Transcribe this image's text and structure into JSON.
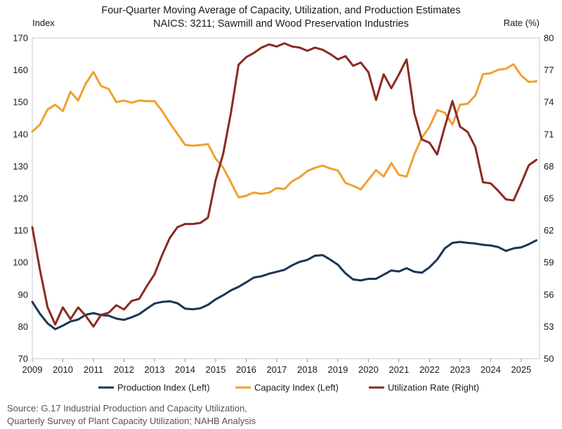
{
  "chart_data": {
    "type": "line",
    "title": "Four-Quarter Moving Average of Capacity, Utilization, and Production Estimates",
    "subtitle": "NAICS: 3211; Sawmill and Wood Preservation Industries",
    "ylabel_left": "Index",
    "ylabel_right": "Rate (%)",
    "xlim": [
      2009,
      2025.6
    ],
    "ylim_left": [
      70,
      170
    ],
    "ylim_right": [
      50,
      80
    ],
    "x_ticks": [
      "2009",
      "2010",
      "2011",
      "2012",
      "2013",
      "2014",
      "2015",
      "2016",
      "2017",
      "2018",
      "2019",
      "2020",
      "2021",
      "2022",
      "2023",
      "2024",
      "2025"
    ],
    "y_ticks_left": [
      "70",
      "80",
      "90",
      "100",
      "110",
      "120",
      "130",
      "140",
      "150",
      "160",
      "170"
    ],
    "y_ticks_right": [
      "50",
      "53",
      "56",
      "59",
      "62",
      "65",
      "68",
      "71",
      "74",
      "77",
      "80"
    ],
    "grid": false,
    "legend_position": "bottom",
    "x": [
      2009.0,
      2009.25,
      2009.5,
      2009.75,
      2010.0,
      2010.25,
      2010.5,
      2010.75,
      2011.0,
      2011.25,
      2011.5,
      2011.75,
      2012.0,
      2012.25,
      2012.5,
      2012.75,
      2013.0,
      2013.25,
      2013.5,
      2013.75,
      2014.0,
      2014.25,
      2014.5,
      2014.75,
      2015.0,
      2015.25,
      2015.5,
      2015.75,
      2016.0,
      2016.25,
      2016.5,
      2016.75,
      2017.0,
      2017.25,
      2017.5,
      2017.75,
      2018.0,
      2018.25,
      2018.5,
      2018.75,
      2019.0,
      2019.25,
      2019.5,
      2019.75,
      2020.0,
      2020.25,
      2020.5,
      2020.75,
      2021.0,
      2021.25,
      2021.5,
      2021.75,
      2022.0,
      2022.25,
      2022.5,
      2022.75,
      2023.0,
      2023.25,
      2023.5,
      2023.75,
      2024.0,
      2024.25,
      2024.5,
      2024.75,
      2025.0,
      2025.25,
      2025.5
    ],
    "series": [
      {
        "name": "Production Index (Left)",
        "axis": "left",
        "color": "#1b3556",
        "values": [
          87.7,
          84,
          81,
          79.2,
          80.3,
          81.6,
          82.2,
          83.7,
          84.2,
          83.6,
          83.4,
          82.5,
          82.1,
          82.9,
          83.9,
          85.6,
          87.2,
          87.7,
          87.9,
          87.3,
          85.6,
          85.4,
          85.7,
          86.8,
          88.5,
          89.8,
          91.3,
          92.4,
          93.8,
          95.3,
          95.7,
          96.5,
          97.1,
          97.7,
          99.1,
          100.2,
          100.8,
          102.1,
          102.3,
          100.9,
          99.3,
          96.6,
          94.7,
          94.4,
          94.9,
          94.9,
          96.2,
          97.5,
          97.2,
          98.2,
          97.1,
          96.8,
          98.5,
          100.9,
          104.4,
          106.1,
          106.4,
          106.1,
          105.9,
          105.5,
          105.3,
          104.8,
          103.6,
          104.4,
          104.7,
          105.7,
          106.9
        ]
      },
      {
        "name": "Capacity Index (Left)",
        "axis": "left",
        "color": "#f0a030",
        "values": [
          140.8,
          143,
          147.7,
          149.2,
          147.2,
          153.2,
          150.5,
          155.8,
          159.4,
          155,
          154.1,
          150,
          150.5,
          149.8,
          150.5,
          150.3,
          150.3,
          147.2,
          143.5,
          140.1,
          136.7,
          136.4,
          136.6,
          136.9,
          132.4,
          129.5,
          125,
          120.3,
          120.8,
          121.8,
          121.4,
          121.8,
          123.2,
          122.9,
          125.3,
          126.6,
          128.5,
          129.5,
          130.2,
          129.3,
          128.7,
          124.8,
          123.9,
          122.8,
          125.8,
          128.8,
          126.8,
          131,
          127.3,
          126.8,
          133.6,
          138.9,
          142.3,
          147.5,
          146.7,
          143,
          149.2,
          149.5,
          152.1,
          158.7,
          159.0,
          160.1,
          160.4,
          161.8,
          158.3,
          156.3,
          156.5
        ]
      },
      {
        "name": "Utilization Rate (Right)",
        "axis": "right",
        "color": "#8b2a22",
        "values": [
          62.3,
          58.3,
          54.8,
          53.2,
          54.8,
          53.7,
          54.8,
          54,
          53,
          54.1,
          54.3,
          55,
          54.6,
          55.4,
          55.6,
          56.8,
          57.9,
          59.7,
          61.3,
          62.3,
          62.6,
          62.6,
          62.7,
          63.2,
          66.7,
          69.2,
          73,
          77.5,
          78.2,
          78.6,
          79.1,
          79.4,
          79.2,
          79.5,
          79.2,
          79.1,
          78.8,
          79.1,
          78.9,
          78.5,
          78,
          78.3,
          77.4,
          77.7,
          76.8,
          74.2,
          76.6,
          75.3,
          76.6,
          78,
          73,
          70.5,
          70.2,
          69.1,
          71.7,
          74.1,
          71.7,
          71.2,
          69.8,
          66.5,
          66.4,
          65.7,
          64.9,
          64.8,
          66.4,
          68.1,
          68.6
        ]
      }
    ]
  },
  "source": {
    "line1": "Source: G.17 Industrial Production and Capacity Utilization,",
    "line2": "Quarterly Survey of Plant Capacity Utilization; NAHB Analysis"
  }
}
